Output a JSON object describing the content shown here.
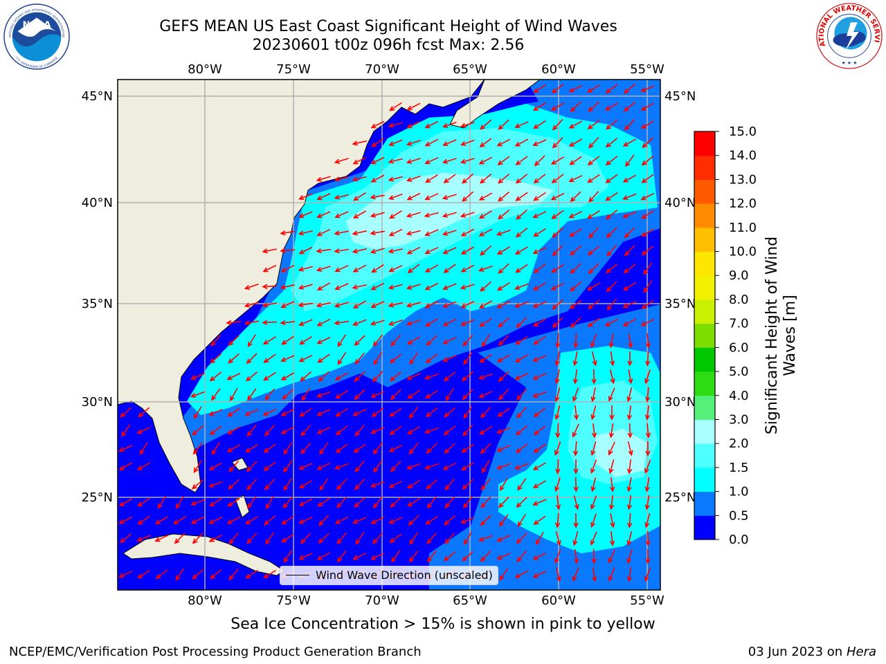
{
  "title": {
    "line1": "GEFS MEAN US East Coast Significant Height of Wind Waves",
    "line2": "20230601 t00z 096h fcst   Max: 2.56"
  },
  "map": {
    "region": "US East Coast / Western North Atlantic",
    "lon_labels": [
      "80°W",
      "75°W",
      "70°W",
      "65°W",
      "60°W",
      "55°W"
    ],
    "lat_labels": [
      "45°N",
      "40°N",
      "35°N",
      "30°N",
      "25°N"
    ],
    "legend_label": "Wind Wave Direction (unscaled)",
    "arrow_color": "#ff0000",
    "land_color": "#efedde",
    "grid_color": "#b0b0b0"
  },
  "colorbar": {
    "title_line1": "Significant Height of Wind",
    "title_line2": "Waves [m]",
    "tick_labels": [
      "0.0",
      "0.5",
      "1.0",
      "1.5",
      "2.0",
      "3.0",
      "4.0",
      "5.0",
      "6.0",
      "7.0",
      "8.0",
      "9.0",
      "10.0",
      "11.0",
      "12.0",
      "13.0",
      "14.0",
      "15.0"
    ],
    "colors": [
      "#0000ff",
      "#0a78ff",
      "#00ffff",
      "#4dffff",
      "#a8ffff",
      "#55f07a",
      "#2edc14",
      "#00c800",
      "#7ddc00",
      "#c8f000",
      "#f0f000",
      "#ffe600",
      "#ffbe00",
      "#ff8c00",
      "#ff5a00",
      "#ff2d00",
      "#ff0000"
    ]
  },
  "footer": {
    "note": "Sea Ice Concentration > 15% is shown in pink to yellow",
    "credit": "NCEP/EMC/Verification Post Processing Product Generation Branch",
    "date": "03 Jun 2023",
    "on_word": "on",
    "machine": "Hera"
  },
  "logos": {
    "left": "NOAA",
    "left_ring_top": "NATIONAL OCEANIC AND ATMOSPHERIC ADMINISTRATION",
    "left_ring_bottom": "U.S. DEPARTMENT OF COMMERCE",
    "right_ring": "NATIONAL WEATHER SERVICE"
  }
}
